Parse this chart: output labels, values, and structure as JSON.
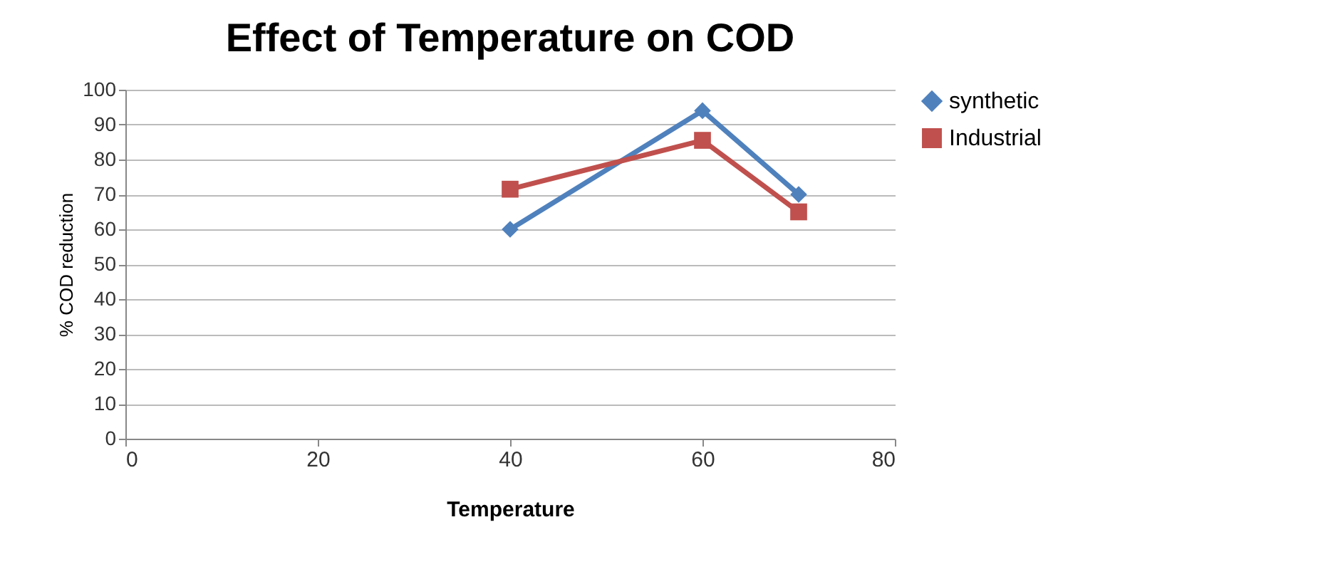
{
  "chart_data": {
    "type": "line",
    "title": "Effect of Temperature on COD",
    "xlabel": "Temperature",
    "ylabel": "% COD reduction",
    "x": [
      40,
      60,
      70
    ],
    "series": [
      {
        "name": "synthetic",
        "color": "#4f81bd",
        "marker": "diamond",
        "values": [
          60,
          94,
          70
        ]
      },
      {
        "name": "Industrial",
        "color": "#c0504d",
        "marker": "square",
        "values": [
          71.5,
          85.5,
          65
        ]
      }
    ],
    "xlim": [
      0,
      80
    ],
    "xticks": [
      0,
      20,
      40,
      60,
      80
    ],
    "ylim": [
      0,
      100
    ],
    "yticks": [
      0,
      10,
      20,
      30,
      40,
      50,
      60,
      70,
      80,
      90,
      100
    ],
    "grid": "y",
    "legend": "right"
  }
}
